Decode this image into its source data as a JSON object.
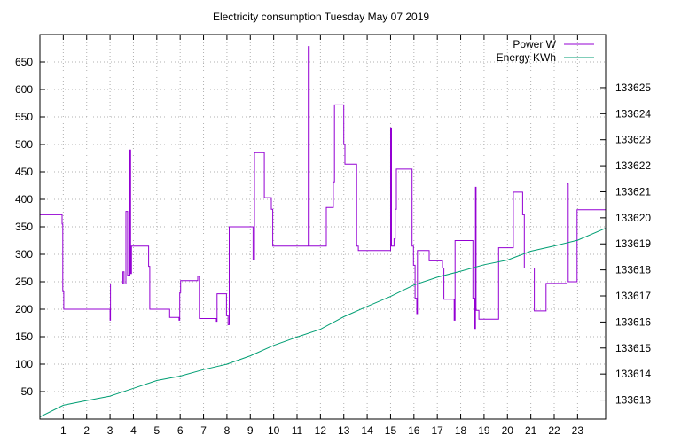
{
  "chart_data": {
    "type": "line",
    "title": "Electricity consumption Tuesday May 07 2019",
    "xlabel": "",
    "ylabel": "",
    "y2label": "",
    "xlim": [
      0,
      24.2
    ],
    "ylim": [
      0,
      700
    ],
    "y2lim": [
      133612.27,
      133627.04
    ],
    "x_ticks": [
      "1",
      "2",
      "3",
      "4",
      "5",
      "6",
      "7",
      "8",
      "9",
      "10",
      "11",
      "12",
      "13",
      "14",
      "15",
      "16",
      "17",
      "18",
      "19",
      "20",
      "21",
      "22",
      "23"
    ],
    "y_ticks": [
      "50",
      "100",
      "150",
      "200",
      "250",
      "300",
      "350",
      "400",
      "450",
      "500",
      "550",
      "600",
      "650"
    ],
    "y2_ticks": [
      "133613",
      "133614",
      "133615",
      "133616",
      "133617",
      "133618",
      "133619",
      "133620",
      "133621",
      "133622",
      "133623",
      "133624",
      "133625"
    ],
    "grid": true,
    "legend_position": "top-right",
    "series": [
      {
        "name": "Power W",
        "axis": "left",
        "color": "#9400d3",
        "points": [
          [
            0,
            372
          ],
          [
            0.95,
            372
          ],
          [
            0.95,
            355
          ],
          [
            0.98,
            355
          ],
          [
            0.98,
            232
          ],
          [
            1.02,
            232
          ],
          [
            1.02,
            200
          ],
          [
            3.0,
            200
          ],
          [
            3.0,
            180
          ],
          [
            3.02,
            180
          ],
          [
            3.02,
            246
          ],
          [
            3.55,
            246
          ],
          [
            3.55,
            268
          ],
          [
            3.6,
            268
          ],
          [
            3.6,
            246
          ],
          [
            3.68,
            246
          ],
          [
            3.68,
            378
          ],
          [
            3.75,
            378
          ],
          [
            3.75,
            262
          ],
          [
            3.85,
            262
          ],
          [
            3.85,
            490
          ],
          [
            3.88,
            490
          ],
          [
            3.88,
            265
          ],
          [
            3.92,
            265
          ],
          [
            3.92,
            315
          ],
          [
            4.65,
            315
          ],
          [
            4.65,
            278
          ],
          [
            4.7,
            278
          ],
          [
            4.7,
            200
          ],
          [
            5.55,
            200
          ],
          [
            5.55,
            185
          ],
          [
            5.95,
            185
          ],
          [
            5.95,
            180
          ],
          [
            5.98,
            180
          ],
          [
            5.98,
            230
          ],
          [
            6.02,
            230
          ],
          [
            6.02,
            252
          ],
          [
            6.75,
            252
          ],
          [
            6.75,
            260
          ],
          [
            6.82,
            260
          ],
          [
            6.82,
            183
          ],
          [
            7.55,
            183
          ],
          [
            7.55,
            178
          ],
          [
            7.58,
            178
          ],
          [
            7.58,
            228
          ],
          [
            7.98,
            228
          ],
          [
            7.98,
            188
          ],
          [
            8.05,
            188
          ],
          [
            8.05,
            172
          ],
          [
            8.1,
            172
          ],
          [
            8.1,
            350
          ],
          [
            9.12,
            350
          ],
          [
            9.12,
            290
          ],
          [
            9.18,
            290
          ],
          [
            9.18,
            485
          ],
          [
            9.6,
            485
          ],
          [
            9.6,
            403
          ],
          [
            9.9,
            403
          ],
          [
            9.9,
            382
          ],
          [
            9.96,
            382
          ],
          [
            9.96,
            315
          ],
          [
            11.48,
            315
          ],
          [
            11.48,
            678
          ],
          [
            11.52,
            678
          ],
          [
            11.52,
            315
          ],
          [
            12.25,
            315
          ],
          [
            12.25,
            385
          ],
          [
            12.55,
            385
          ],
          [
            12.55,
            432
          ],
          [
            12.6,
            432
          ],
          [
            12.6,
            572
          ],
          [
            13.0,
            572
          ],
          [
            13.0,
            500
          ],
          [
            13.05,
            500
          ],
          [
            13.05,
            464
          ],
          [
            13.55,
            464
          ],
          [
            13.55,
            315
          ],
          [
            13.62,
            315
          ],
          [
            13.62,
            307
          ],
          [
            15.0,
            307
          ],
          [
            15.0,
            530
          ],
          [
            15.04,
            530
          ],
          [
            15.04,
            315
          ],
          [
            15.15,
            315
          ],
          [
            15.15,
            328
          ],
          [
            15.2,
            328
          ],
          [
            15.2,
            382
          ],
          [
            15.25,
            382
          ],
          [
            15.25,
            455
          ],
          [
            15.92,
            455
          ],
          [
            15.92,
            315
          ],
          [
            15.98,
            315
          ],
          [
            15.98,
            280
          ],
          [
            16.05,
            280
          ],
          [
            16.05,
            220
          ],
          [
            16.12,
            220
          ],
          [
            16.12,
            192
          ],
          [
            16.15,
            192
          ],
          [
            16.15,
            307
          ],
          [
            16.65,
            307
          ],
          [
            16.65,
            288
          ],
          [
            17.22,
            288
          ],
          [
            17.22,
            275
          ],
          [
            17.28,
            275
          ],
          [
            17.28,
            218
          ],
          [
            17.72,
            218
          ],
          [
            17.72,
            180
          ],
          [
            17.76,
            180
          ],
          [
            17.76,
            325
          ],
          [
            18.52,
            325
          ],
          [
            18.52,
            220
          ],
          [
            18.6,
            220
          ],
          [
            18.6,
            165
          ],
          [
            18.63,
            165
          ],
          [
            18.63,
            422
          ],
          [
            18.66,
            422
          ],
          [
            18.66,
            198
          ],
          [
            18.78,
            198
          ],
          [
            18.78,
            182
          ],
          [
            19.62,
            182
          ],
          [
            19.62,
            312
          ],
          [
            20.25,
            312
          ],
          [
            20.25,
            413
          ],
          [
            20.65,
            413
          ],
          [
            20.65,
            372
          ],
          [
            20.72,
            372
          ],
          [
            20.72,
            275
          ],
          [
            21.15,
            275
          ],
          [
            21.15,
            197
          ],
          [
            21.65,
            197
          ],
          [
            21.65,
            247
          ],
          [
            22.55,
            247
          ],
          [
            22.55,
            428
          ],
          [
            22.6,
            428
          ],
          [
            22.6,
            250
          ],
          [
            22.98,
            250
          ],
          [
            22.98,
            381
          ],
          [
            24.2,
            381
          ]
        ]
      },
      {
        "name": "Energy KWh",
        "axis": "right",
        "color": "#009e73",
        "points": [
          [
            0,
            133612.35
          ],
          [
            1,
            133612.8
          ],
          [
            2,
            133612.98
          ],
          [
            3,
            133613.15
          ],
          [
            4,
            133613.45
          ],
          [
            5,
            133613.75
          ],
          [
            6,
            133613.92
          ],
          [
            7,
            133614.17
          ],
          [
            8,
            133614.38
          ],
          [
            9,
            133614.7
          ],
          [
            10,
            133615.1
          ],
          [
            11,
            133615.42
          ],
          [
            12,
            133615.72
          ],
          [
            13,
            133616.2
          ],
          [
            14,
            133616.6
          ],
          [
            15,
            133616.98
          ],
          [
            16,
            133617.42
          ],
          [
            17,
            133617.72
          ],
          [
            18,
            133617.95
          ],
          [
            19,
            133618.2
          ],
          [
            20,
            133618.38
          ],
          [
            21,
            133618.72
          ],
          [
            22,
            133618.92
          ],
          [
            23,
            133619.14
          ],
          [
            24.2,
            133619.6
          ]
        ]
      }
    ]
  }
}
